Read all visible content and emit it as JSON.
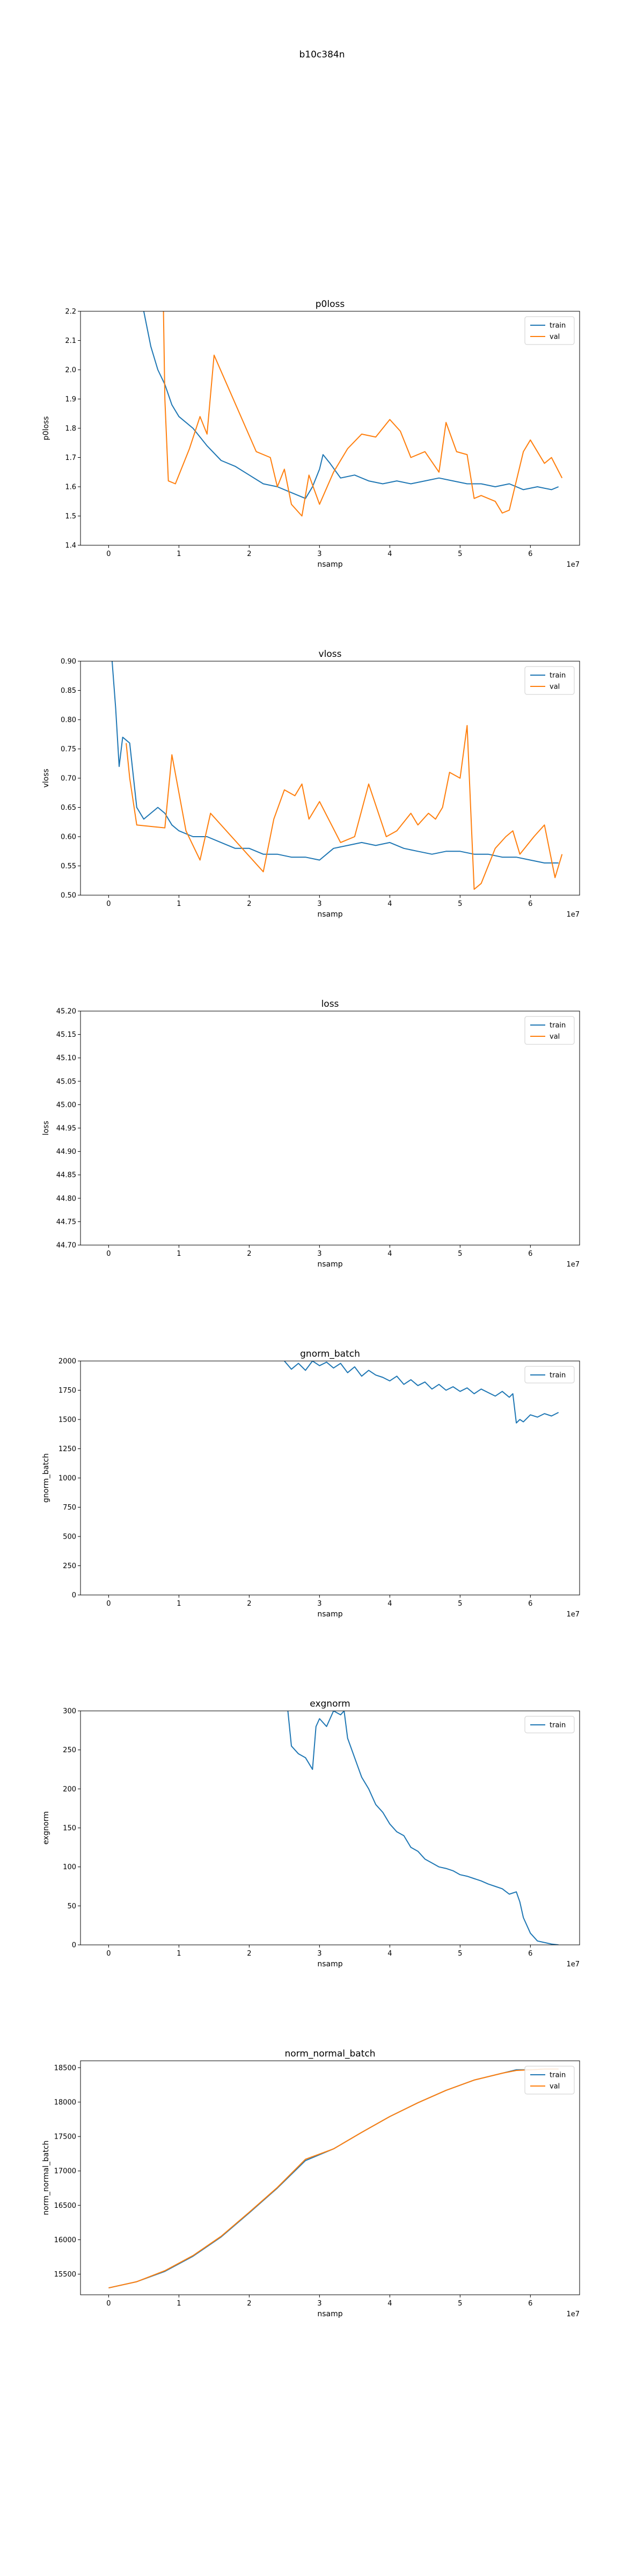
{
  "figure_title": "b10c384n",
  "colors": {
    "train": "#1f77b4",
    "val": "#ff7f0e"
  },
  "chart_data": [
    {
      "type": "line",
      "title": "p0loss",
      "xlabel": "nsamp",
      "ylabel": "p0loss",
      "x_offset_label": "1e7",
      "xlim": [
        -0.4,
        6.7
      ],
      "ylim": [
        1.4,
        2.2
      ],
      "xticks": [
        0,
        1,
        2,
        3,
        4,
        5,
        6
      ],
      "xtick_labels": [
        "0",
        "1",
        "2",
        "3",
        "4",
        "5",
        "6"
      ],
      "yticks": [
        1.4,
        1.5,
        1.6,
        1.7,
        1.8,
        1.9,
        2.0,
        2.1,
        2.2
      ],
      "ytick_labels": [
        "1.4",
        "1.5",
        "1.6",
        "1.7",
        "1.8",
        "1.9",
        "2.0",
        "2.1",
        "2.2"
      ],
      "legend": "upper right",
      "series": [
        {
          "name": "train",
          "color": "#1f77b4",
          "x": [
            0.5,
            0.6,
            0.7,
            0.8,
            0.9,
            1.0,
            1.2,
            1.4,
            1.6,
            1.8,
            2.0,
            2.2,
            2.4,
            2.6,
            2.8,
            2.9,
            3.0,
            3.05,
            3.15,
            3.3,
            3.5,
            3.7,
            3.9,
            4.1,
            4.3,
            4.5,
            4.7,
            4.9,
            5.1,
            5.3,
            5.5,
            5.7,
            5.9,
            6.1,
            6.3,
            6.4
          ],
          "y": [
            2.2,
            2.08,
            2.0,
            1.95,
            1.88,
            1.84,
            1.8,
            1.74,
            1.69,
            1.67,
            1.64,
            1.61,
            1.6,
            1.58,
            1.56,
            1.6,
            1.66,
            1.71,
            1.68,
            1.63,
            1.64,
            1.62,
            1.61,
            1.62,
            1.61,
            1.62,
            1.63,
            1.62,
            1.61,
            1.61,
            1.6,
            1.61,
            1.59,
            1.6,
            1.59,
            1.6
          ]
        },
        {
          "name": "val",
          "color": "#ff7f0e",
          "x": [
            0.78,
            0.8,
            0.85,
            0.95,
            1.15,
            1.3,
            1.4,
            1.5,
            2.1,
            2.3,
            2.4,
            2.5,
            2.6,
            2.75,
            2.85,
            3.0,
            3.2,
            3.4,
            3.6,
            3.8,
            4.0,
            4.15,
            4.3,
            4.5,
            4.7,
            4.8,
            4.95,
            5.1,
            5.2,
            5.3,
            5.5,
            5.6,
            5.7,
            5.9,
            6.0,
            6.2,
            6.3,
            6.45
          ],
          "y": [
            2.2,
            1.9,
            1.62,
            1.61,
            1.73,
            1.84,
            1.78,
            2.05,
            1.72,
            1.7,
            1.6,
            1.66,
            1.54,
            1.5,
            1.64,
            1.54,
            1.65,
            1.73,
            1.78,
            1.77,
            1.83,
            1.79,
            1.7,
            1.72,
            1.65,
            1.82,
            1.72,
            1.71,
            1.56,
            1.57,
            1.55,
            1.51,
            1.52,
            1.72,
            1.76,
            1.68,
            1.7,
            1.63
          ]
        }
      ]
    },
    {
      "type": "line",
      "title": "vloss",
      "xlabel": "nsamp",
      "ylabel": "vloss",
      "x_offset_label": "1e7",
      "xlim": [
        -0.4,
        6.7
      ],
      "ylim": [
        0.5,
        0.9
      ],
      "xticks": [
        0,
        1,
        2,
        3,
        4,
        5,
        6
      ],
      "xtick_labels": [
        "0",
        "1",
        "2",
        "3",
        "4",
        "5",
        "6"
      ],
      "yticks": [
        0.5,
        0.55,
        0.6,
        0.65,
        0.7,
        0.75,
        0.8,
        0.85,
        0.9
      ],
      "ytick_labels": [
        "0.50",
        "0.55",
        "0.60",
        "0.65",
        "0.70",
        "0.75",
        "0.80",
        "0.85",
        "0.90"
      ],
      "legend": "upper right",
      "series": [
        {
          "name": "train",
          "color": "#1f77b4",
          "x": [
            0.05,
            0.1,
            0.15,
            0.2,
            0.3,
            0.4,
            0.5,
            0.6,
            0.7,
            0.8,
            0.9,
            1.0,
            1.2,
            1.4,
            1.6,
            1.8,
            2.0,
            2.2,
            2.4,
            2.6,
            2.8,
            3.0,
            3.2,
            3.4,
            3.6,
            3.8,
            4.0,
            4.2,
            4.4,
            4.6,
            4.8,
            5.0,
            5.2,
            5.4,
            5.6,
            5.8,
            6.0,
            6.2,
            6.4
          ],
          "y": [
            0.9,
            0.82,
            0.72,
            0.77,
            0.76,
            0.65,
            0.63,
            0.64,
            0.65,
            0.64,
            0.62,
            0.61,
            0.6,
            0.6,
            0.59,
            0.58,
            0.58,
            0.57,
            0.57,
            0.565,
            0.565,
            0.56,
            0.58,
            0.585,
            0.59,
            0.585,
            0.59,
            0.58,
            0.575,
            0.57,
            0.575,
            0.575,
            0.57,
            0.57,
            0.565,
            0.565,
            0.56,
            0.555,
            0.555
          ]
        },
        {
          "name": "val",
          "color": "#ff7f0e",
          "x": [
            0.25,
            0.3,
            0.4,
            0.8,
            0.9,
            1.1,
            1.3,
            1.45,
            2.2,
            2.35,
            2.5,
            2.65,
            2.75,
            2.85,
            3.0,
            3.3,
            3.5,
            3.7,
            3.95,
            4.1,
            4.3,
            4.4,
            4.55,
            4.65,
            4.75,
            4.85,
            5.0,
            5.1,
            5.2,
            5.3,
            5.5,
            5.65,
            5.75,
            5.85,
            6.05,
            6.2,
            6.35,
            6.45
          ],
          "y": [
            0.76,
            0.7,
            0.62,
            0.615,
            0.74,
            0.61,
            0.56,
            0.64,
            0.54,
            0.63,
            0.68,
            0.67,
            0.69,
            0.63,
            0.66,
            0.59,
            0.6,
            0.69,
            0.6,
            0.61,
            0.64,
            0.62,
            0.64,
            0.63,
            0.65,
            0.71,
            0.7,
            0.79,
            0.51,
            0.52,
            0.58,
            0.6,
            0.61,
            0.57,
            0.6,
            0.62,
            0.53,
            0.57
          ]
        }
      ]
    },
    {
      "type": "line",
      "title": "loss",
      "xlabel": "nsamp",
      "ylabel": "loss",
      "x_offset_label": "1e7",
      "xlim": [
        -0.4,
        6.7
      ],
      "ylim": [
        44.7,
        45.2
      ],
      "xticks": [
        0,
        1,
        2,
        3,
        4,
        5,
        6
      ],
      "xtick_labels": [
        "0",
        "1",
        "2",
        "3",
        "4",
        "5",
        "6"
      ],
      "yticks": [
        44.7,
        44.75,
        44.8,
        44.85,
        44.9,
        44.95,
        45.0,
        45.05,
        45.1,
        45.15,
        45.2
      ],
      "ytick_labels": [
        "44.70",
        "44.75",
        "44.80",
        "44.85",
        "44.90",
        "44.95",
        "45.00",
        "45.05",
        "45.10",
        "45.15",
        "45.20"
      ],
      "legend": "upper right",
      "series": [
        {
          "name": "train",
          "color": "#1f77b4",
          "x": [],
          "y": []
        },
        {
          "name": "val",
          "color": "#ff7f0e",
          "x": [],
          "y": []
        }
      ]
    },
    {
      "type": "line",
      "title": "gnorm_batch",
      "xlabel": "nsamp",
      "ylabel": "gnorm_batch",
      "x_offset_label": "1e7",
      "xlim": [
        -0.4,
        6.7
      ],
      "ylim": [
        0,
        2000
      ],
      "xticks": [
        0,
        1,
        2,
        3,
        4,
        5,
        6
      ],
      "xtick_labels": [
        "0",
        "1",
        "2",
        "3",
        "4",
        "5",
        "6"
      ],
      "yticks": [
        0,
        250,
        500,
        750,
        1000,
        1250,
        1500,
        1750,
        2000
      ],
      "ytick_labels": [
        "0",
        "250",
        "500",
        "750",
        "1000",
        "1250",
        "1500",
        "1750",
        "2000"
      ],
      "legend": "upper right",
      "series": [
        {
          "name": "train",
          "color": "#1f77b4",
          "x": [
            2.5,
            2.6,
            2.7,
            2.8,
            2.9,
            3.0,
            3.1,
            3.2,
            3.3,
            3.4,
            3.5,
            3.6,
            3.7,
            3.8,
            3.9,
            4.0,
            4.1,
            4.2,
            4.3,
            4.4,
            4.5,
            4.6,
            4.7,
            4.8,
            4.9,
            5.0,
            5.1,
            5.2,
            5.3,
            5.4,
            5.5,
            5.6,
            5.7,
            5.75,
            5.8,
            5.85,
            5.9,
            6.0,
            6.1,
            6.2,
            6.3,
            6.4
          ],
          "y": [
            2000,
            1930,
            1980,
            1920,
            2000,
            1960,
            1990,
            1940,
            1980,
            1900,
            1950,
            1870,
            1920,
            1880,
            1860,
            1830,
            1870,
            1800,
            1840,
            1790,
            1820,
            1760,
            1800,
            1750,
            1780,
            1740,
            1770,
            1720,
            1760,
            1730,
            1700,
            1740,
            1690,
            1720,
            1470,
            1500,
            1480,
            1540,
            1520,
            1550,
            1530,
            1560
          ]
        }
      ]
    },
    {
      "type": "line",
      "title": "exgnorm",
      "xlabel": "nsamp",
      "ylabel": "exgnorm",
      "x_offset_label": "1e7",
      "xlim": [
        -0.4,
        6.7
      ],
      "ylim": [
        0,
        300
      ],
      "xticks": [
        0,
        1,
        2,
        3,
        4,
        5,
        6
      ],
      "xtick_labels": [
        "0",
        "1",
        "2",
        "3",
        "4",
        "5",
        "6"
      ],
      "yticks": [
        0,
        50,
        100,
        150,
        200,
        250,
        300
      ],
      "ytick_labels": [
        "0",
        "50",
        "100",
        "150",
        "200",
        "250",
        "300"
      ],
      "legend": "upper right",
      "series": [
        {
          "name": "train",
          "color": "#1f77b4",
          "x": [
            2.55,
            2.6,
            2.7,
            2.8,
            2.9,
            2.95,
            3.0,
            3.1,
            3.2,
            3.3,
            3.35,
            3.4,
            3.5,
            3.6,
            3.7,
            3.8,
            3.9,
            4.0,
            4.1,
            4.2,
            4.3,
            4.4,
            4.5,
            4.6,
            4.7,
            4.8,
            4.9,
            5.0,
            5.1,
            5.2,
            5.3,
            5.4,
            5.5,
            5.6,
            5.7,
            5.8,
            5.85,
            5.9,
            6.0,
            6.1,
            6.2,
            6.3,
            6.4
          ],
          "y": [
            300,
            255,
            245,
            240,
            225,
            280,
            290,
            280,
            300,
            295,
            300,
            265,
            240,
            215,
            200,
            180,
            170,
            155,
            145,
            140,
            125,
            120,
            110,
            105,
            100,
            98,
            95,
            90,
            88,
            85,
            82,
            78,
            75,
            72,
            65,
            68,
            55,
            35,
            15,
            5,
            3,
            1,
            0
          ]
        }
      ]
    },
    {
      "type": "line",
      "title": "norm_normal_batch",
      "xlabel": "nsamp",
      "ylabel": "norm_normal_batch",
      "x_offset_label": "1e7",
      "xlim": [
        -0.4,
        6.7
      ],
      "ylim": [
        15200,
        18600
      ],
      "xticks": [
        0,
        1,
        2,
        3,
        4,
        5,
        6
      ],
      "xtick_labels": [
        "0",
        "1",
        "2",
        "3",
        "4",
        "5",
        "6"
      ],
      "yticks": [
        15500,
        16000,
        16500,
        17000,
        17500,
        18000,
        18500
      ],
      "ytick_labels": [
        "15500",
        "16000",
        "16500",
        "17000",
        "17500",
        "18000",
        "18500"
      ],
      "legend": "upper right",
      "series": [
        {
          "name": "train",
          "color": "#1f77b4",
          "x": [
            0,
            0.4,
            0.8,
            1.2,
            1.6,
            2.0,
            2.4,
            2.8,
            3.2,
            3.6,
            4.0,
            4.4,
            4.8,
            5.2,
            5.6,
            5.8,
            6.0,
            6.2,
            6.4
          ],
          "y": [
            15300,
            15390,
            15540,
            15760,
            16040,
            16390,
            16750,
            17150,
            17320,
            17560,
            17790,
            17990,
            18170,
            18320,
            18420,
            18470,
            18470,
            18480,
            18480
          ]
        },
        {
          "name": "val",
          "color": "#ff7f0e",
          "x": [
            0,
            0.4,
            0.8,
            1.2,
            1.6,
            2.0,
            2.4,
            2.8,
            3.2,
            3.6,
            4.0,
            4.4,
            4.8,
            5.2,
            5.6,
            5.8,
            6.0,
            6.2,
            6.4
          ],
          "y": [
            15300,
            15390,
            15550,
            15770,
            16050,
            16400,
            16760,
            17170,
            17320,
            17560,
            17790,
            17990,
            18170,
            18320,
            18420,
            18460,
            18470,
            18480,
            18480
          ]
        }
      ]
    }
  ]
}
